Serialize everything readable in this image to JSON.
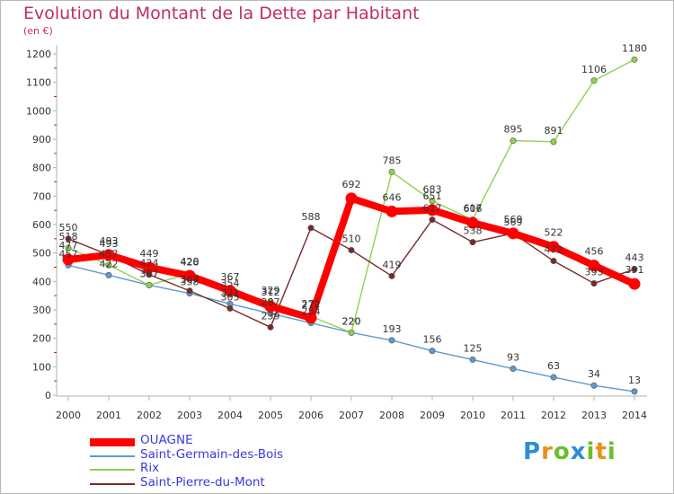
{
  "header": {
    "title": "Evolution du Montant de la Dette par Habitant",
    "unit": "(en €)"
  },
  "logo": {
    "text": "Proxiti"
  },
  "chart_data": {
    "type": "line",
    "title": "Evolution du Montant de la Dette par Habitant",
    "subtitle": "(en €)",
    "xlabel": "",
    "ylabel": "",
    "ylim": [
      0,
      1200
    ],
    "grid": false,
    "legend_position": "bottom-left",
    "x": [
      "2000",
      "2001",
      "2002",
      "2003",
      "2004",
      "2005",
      "2006",
      "2007",
      "2008",
      "2009",
      "2010",
      "2011",
      "2012",
      "2013",
      "2014"
    ],
    "y_ticks": [
      "0",
      "100",
      "200",
      "300",
      "400",
      "500",
      "600",
      "700",
      "800",
      "900",
      "1000",
      "1100",
      "1200"
    ],
    "series": [
      {
        "name": "Saint-Germain-des-Bois",
        "color": "#5c9ad2",
        "values": [
          457,
          422,
          387,
          358,
          321,
          287,
          254,
          220,
          193,
          156,
          125,
          93,
          63,
          34,
          13
        ]
      },
      {
        "name": "Rix",
        "color": "#8fd14f",
        "values": [
          518,
          457,
          387,
          428,
          354,
          329,
          277,
          220,
          785,
          683,
          617,
          895,
          891,
          1106,
          1180
        ]
      },
      {
        "name": "Saint-Pierre-du-Mont",
        "color": "#7a2a2a",
        "values": [
          550,
          493,
          424,
          367,
          305,
          239,
          588,
          510,
          419,
          617,
          538,
          569,
          472,
          393,
          443
        ]
      },
      {
        "name": "OUAGNE",
        "color": "#ff0000",
        "values": [
          477,
          493,
          449,
          420,
          367,
          312,
          272,
          692,
          646,
          651,
          606,
          569,
          522,
          456,
          391
        ]
      }
    ]
  }
}
